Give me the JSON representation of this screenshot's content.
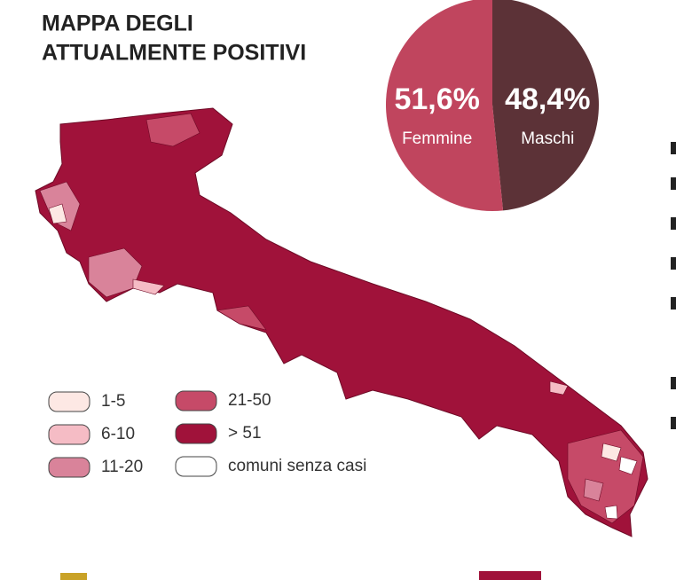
{
  "title": [
    "MAPPA DEGLI",
    "ATTUALMENTE POSITIVI"
  ],
  "chart_data": {
    "type": "pie",
    "categories": [
      "Femmine",
      "Maschi"
    ],
    "values": [
      51.6,
      48.4
    ],
    "value_labels": [
      "51,6%",
      "48,4%"
    ],
    "colors": [
      "#c0455e",
      "#5c3237"
    ]
  },
  "map_legend": [
    {
      "label": "1-5",
      "color": "#fde8e4"
    },
    {
      "label": "6-10",
      "color": "#f5bcc5"
    },
    {
      "label": "11-20",
      "color": "#d9839a"
    },
    {
      "label": "21-50",
      "color": "#c64a68"
    },
    {
      "label": "> 51",
      "color": "#a0123a"
    },
    {
      "label": "comuni senza casi",
      "color": "#ffffff"
    }
  ]
}
